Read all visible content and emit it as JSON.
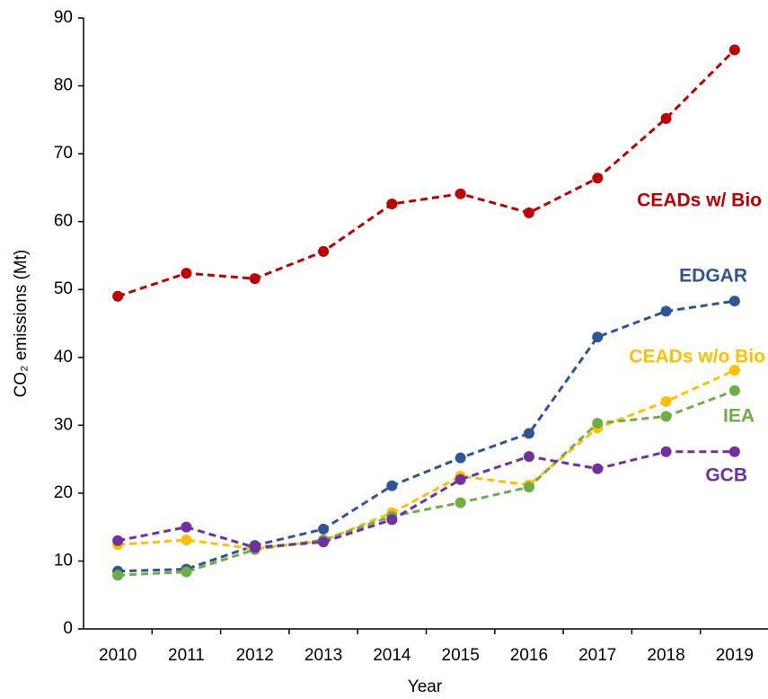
{
  "chart_data": {
    "type": "line",
    "x_label": "Year",
    "y_label": "CO₂ emissions (Mt)",
    "categories": [
      "2010",
      "2011",
      "2012",
      "2013",
      "2014",
      "2015",
      "2016",
      "2017",
      "2018",
      "2019"
    ],
    "ylim": [
      0,
      90
    ],
    "yticks": [
      0,
      10,
      20,
      30,
      40,
      50,
      60,
      70,
      80,
      90
    ],
    "grid": false,
    "line_style": "dashed",
    "series": [
      {
        "name": "CEADs w/ Bio",
        "color": "#c00000",
        "values": [
          49,
          52.4,
          51.6,
          55.6,
          62.6,
          64.1,
          61.3,
          66.4,
          75.2,
          85.3
        ]
      },
      {
        "name": "EDGAR",
        "color": "#2f5597",
        "values": [
          8.5,
          8.8,
          12.3,
          14.7,
          21.1,
          25.2,
          28.8,
          43,
          46.8,
          48.3
        ]
      },
      {
        "name": "CEADs w/o Bio",
        "color": "#ffc000",
        "values": [
          12.4,
          13.1,
          11.8,
          13,
          17.1,
          22.5,
          21.2,
          29.6,
          33.5,
          38.1
        ]
      },
      {
        "name": "IEA",
        "color": "#70ad47",
        "values": [
          7.9,
          8.4,
          11.7,
          13.1,
          16.6,
          18.6,
          20.9,
          30.3,
          31.3,
          35.1
        ]
      },
      {
        "name": "GCB",
        "color": "#7030a0",
        "values": [
          13,
          15,
          12,
          12.8,
          16.1,
          22,
          25.4,
          23.6,
          26.1,
          26.1
        ]
      }
    ]
  }
}
